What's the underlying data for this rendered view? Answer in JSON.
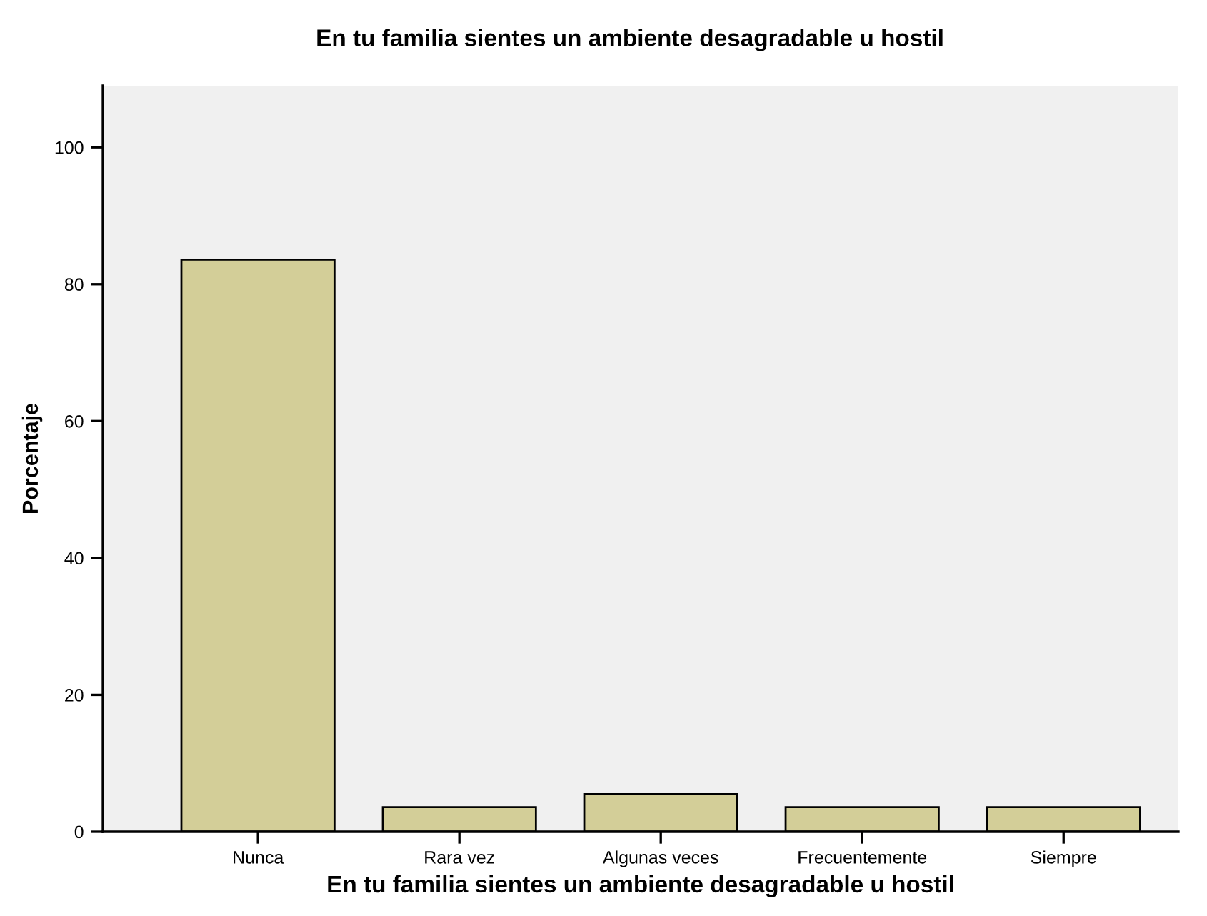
{
  "chart_data": {
    "type": "bar",
    "title": "En tu familia sientes un ambiente desagradable u hostil",
    "xlabel": "En tu familia sientes un ambiente desagradable u hostil",
    "ylabel": "Porcentaje",
    "categories": [
      "Nunca",
      "Rara vez",
      "Algunas veces",
      "Frecuentemente",
      "Siempre"
    ],
    "values": [
      83.6,
      3.6,
      5.5,
      3.6,
      3.6
    ],
    "color": "#d3ce98",
    "ylim": [
      0,
      109
    ],
    "yticks": [
      0,
      20,
      40,
      60,
      80,
      100
    ],
    "grid": false,
    "legend": false
  }
}
